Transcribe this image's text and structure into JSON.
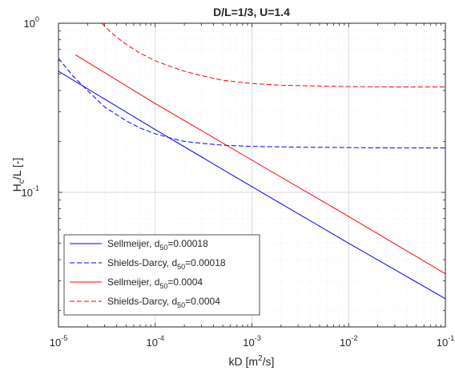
{
  "chart_data": {
    "type": "line",
    "title": "D/L=1/3, U=1.4",
    "xlabel": {
      "prefix": "kD [m",
      "sup": "2",
      "suffix": "/s]"
    },
    "ylabel": {
      "prefix": "H",
      "sub": "c",
      "suffix": "/L [-]"
    },
    "x_scale": "log",
    "y_scale": "log",
    "xlim": [
      1e-05,
      0.1
    ],
    "ylim": [
      0.016,
      1
    ],
    "x_ticks": [
      {
        "value": 1e-05,
        "base": "10",
        "exp": "-5"
      },
      {
        "value": 0.0001,
        "base": "10",
        "exp": "-4"
      },
      {
        "value": 0.001,
        "base": "10",
        "exp": "-3"
      },
      {
        "value": 0.01,
        "base": "10",
        "exp": "-2"
      },
      {
        "value": 0.1,
        "base": "10",
        "exp": "-1"
      }
    ],
    "y_ticks": [
      {
        "value": 0.1,
        "base": "10",
        "exp": "-1"
      },
      {
        "value": 1,
        "base": "10",
        "exp": "0"
      }
    ],
    "grid": true,
    "minor_grid": true,
    "legend_position": "bottom-left",
    "series": [
      {
        "label": {
          "prefix": "Sellmeijer, d",
          "sub": "50",
          "suffix": "=0.00018"
        },
        "color": "#0000ff",
        "style": "solid",
        "points": [
          [
            1e-05,
            0.52
          ],
          [
            0.0001,
            0.235
          ],
          [
            0.001,
            0.108
          ],
          [
            0.01,
            0.05
          ],
          [
            0.1,
            0.0235
          ]
        ]
      },
      {
        "label": {
          "prefix": "Shields-Darcy, d",
          "sub": "50",
          "suffix": "=0.00018"
        },
        "color": "#0000ff",
        "style": "dashed",
        "points": [
          [
            1e-05,
            0.62
          ],
          [
            1.4e-05,
            0.49
          ],
          [
            2e-05,
            0.4
          ],
          [
            3e-05,
            0.32
          ],
          [
            5e-05,
            0.265
          ],
          [
            7e-05,
            0.24
          ],
          [
            0.0001,
            0.222
          ],
          [
            0.00015,
            0.208
          ],
          [
            0.0002,
            0.2
          ],
          [
            0.0003,
            0.195
          ],
          [
            0.0005,
            0.19
          ],
          [
            0.001,
            0.187
          ],
          [
            0.003,
            0.185
          ],
          [
            0.01,
            0.184
          ],
          [
            0.03,
            0.183
          ],
          [
            0.1,
            0.183
          ]
        ]
      },
      {
        "label": {
          "prefix": "Sellmeijer, d",
          "sub": "50",
          "suffix": "=0.0004"
        },
        "color": "#ff0000",
        "style": "solid",
        "points": [
          [
            1.5e-05,
            0.65
          ],
          [
            0.0001,
            0.335
          ],
          [
            0.001,
            0.155
          ],
          [
            0.01,
            0.072
          ],
          [
            0.1,
            0.033
          ]
        ]
      },
      {
        "label": {
          "prefix": "Shields-Darcy, d",
          "sub": "50",
          "suffix": "=0.0004"
        },
        "color": "#ff0000",
        "style": "dashed",
        "points": [
          [
            2.8e-05,
            1.0
          ],
          [
            3.5e-05,
            0.88
          ],
          [
            5e-05,
            0.75
          ],
          [
            7e-05,
            0.665
          ],
          [
            0.0001,
            0.6
          ],
          [
            0.00015,
            0.55
          ],
          [
            0.0002,
            0.52
          ],
          [
            0.0003,
            0.49
          ],
          [
            0.0005,
            0.46
          ],
          [
            0.001,
            0.44
          ],
          [
            0.002,
            0.43
          ],
          [
            0.005,
            0.425
          ],
          [
            0.01,
            0.422
          ],
          [
            0.03,
            0.42
          ],
          [
            0.1,
            0.42
          ]
        ]
      }
    ]
  }
}
